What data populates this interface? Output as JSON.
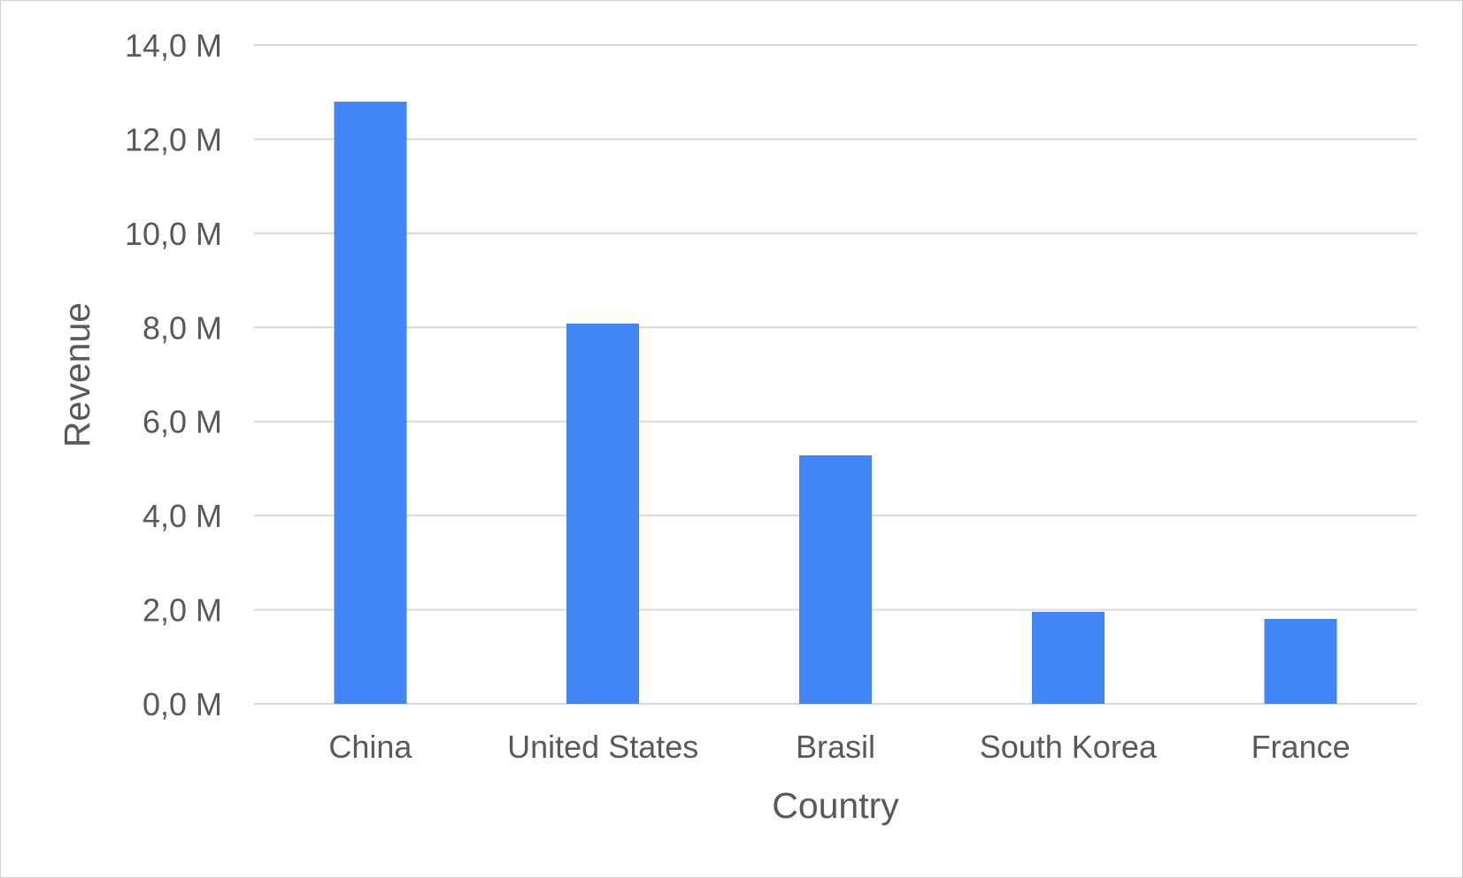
{
  "chart_data": {
    "type": "bar",
    "title": "",
    "xlabel": "Country",
    "ylabel": "Revenue",
    "categories": [
      "China",
      "United States",
      "Brasil",
      "South Korea",
      "France"
    ],
    "values": [
      12800000,
      8080000,
      5280000,
      1950000,
      1800000
    ],
    "ylim": [
      0,
      14000000
    ],
    "yticks": [
      0,
      2000000,
      4000000,
      6000000,
      8000000,
      10000000,
      12000000,
      14000000
    ],
    "ytick_labels": [
      "0,0 M",
      "2,0 M",
      "4,0 M",
      "6,0 M",
      "8,0 M",
      "10,0 M",
      "12,0 M",
      "14,0 M"
    ],
    "grid": true,
    "legend": "none",
    "colors": {
      "bar": "#4285f4",
      "grid": "#d9d9d9",
      "text": "#595959"
    }
  }
}
